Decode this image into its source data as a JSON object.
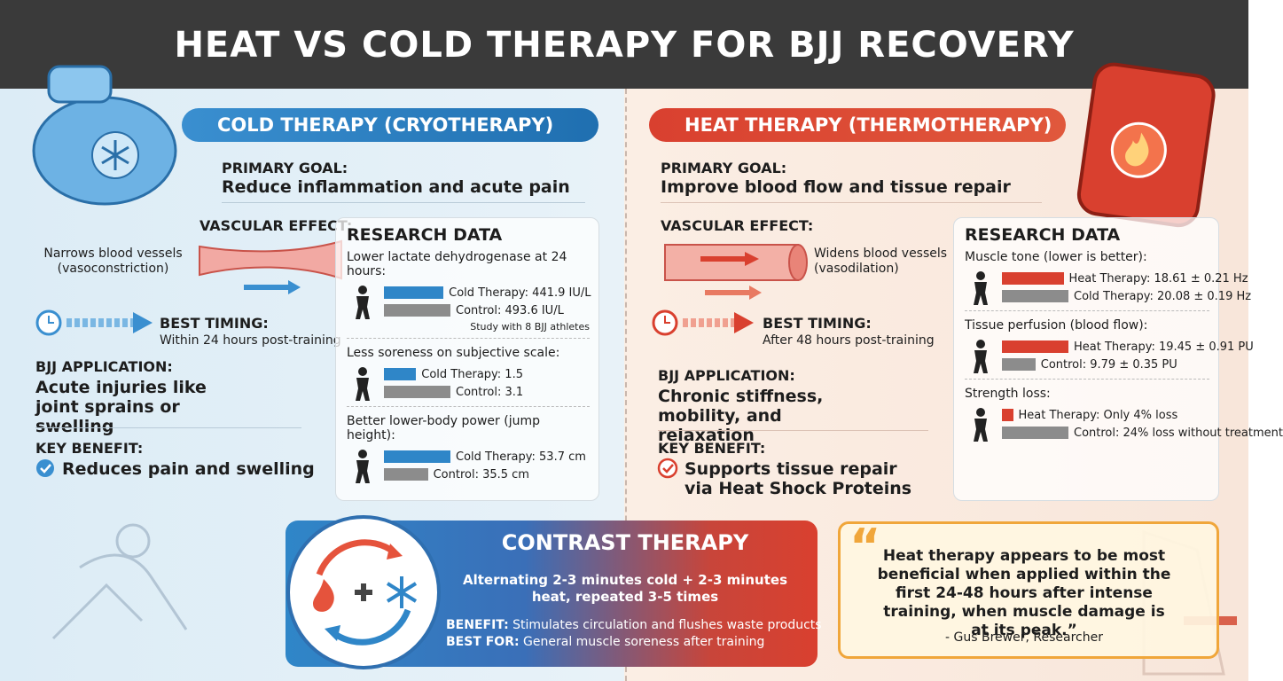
{
  "title": "HEAT VS COLD THERAPY FOR BJJ RECOVERY",
  "cold": {
    "heading": "COLD THERAPY (CRYOTHERAPY)",
    "goal_label": "PRIMARY GOAL:",
    "goal": "Reduce inflammation and acute pain",
    "vascular_label": "VASCULAR EFFECT:",
    "vascular": "Narrows blood vessels (vasoconstriction)",
    "timing_label": "BEST TIMING:",
    "timing": "Within 24 hours post-training",
    "application_label": "BJJ APPLICATION:",
    "application": "Acute injuries like joint sprains or swelling",
    "benefit_label": "KEY BENEFIT:",
    "benefit": "Reduces pain and swelling",
    "research": {
      "title": "RESEARCH DATA",
      "items": [
        {
          "title": "Lower lactate dehydrogenase at 24 hours:",
          "bars": [
            {
              "label": "Cold Therapy: 441.9 IU/L",
              "value": 441.9,
              "color": "#2f86c8"
            },
            {
              "label": "Control: 493.6 IU/L",
              "value": 493.6,
              "color": "#8c8c8c"
            }
          ],
          "note": "Study with 8 BJJ athletes"
        },
        {
          "title": "Less soreness on subjective scale:",
          "bars": [
            {
              "label": "Cold Therapy: 1.5",
              "value": 1.5,
              "color": "#2f86c8"
            },
            {
              "label": "Control: 3.1",
              "value": 3.1,
              "color": "#8c8c8c"
            }
          ]
        },
        {
          "title": "Better lower-body power (jump height):",
          "bars": [
            {
              "label": "Cold Therapy: 53.7 cm",
              "value": 53.7,
              "color": "#2f86c8"
            },
            {
              "label": "Control: 35.5 cm",
              "value": 35.5,
              "color": "#8c8c8c"
            }
          ]
        }
      ]
    }
  },
  "heat": {
    "heading": "HEAT THERAPY (THERMOTHERAPY)",
    "goal_label": "PRIMARY GOAL:",
    "goal": "Improve blood flow and tissue repair",
    "vascular_label": "VASCULAR EFFECT:",
    "vascular": "Widens blood vessels (vasodilation)",
    "timing_label": "BEST TIMING:",
    "timing": "After 48 hours post-training",
    "application_label": "BJJ APPLICATION:",
    "application": "Chronic stiffness, mobility, and relaxation",
    "benefit_label": "KEY BENEFIT:",
    "benefit": "Supports tissue repair via Heat Shock Proteins",
    "research": {
      "title": "RESEARCH DATA",
      "items": [
        {
          "title": "Muscle tone (lower is better):",
          "bars": [
            {
              "label": "Heat Therapy: 18.61 ± 0.21 Hz",
              "value": 18.61,
              "color": "#d9402f"
            },
            {
              "label": "Cold Therapy: 20.08 ± 0.19 Hz",
              "value": 20.08,
              "color": "#8c8c8c"
            }
          ]
        },
        {
          "title": "Tissue perfusion (blood flow):",
          "bars": [
            {
              "label": "Heat Therapy: 19.45 ± 0.91 PU",
              "value": 19.45,
              "color": "#d9402f"
            },
            {
              "label": "Control: 9.79 ± 0.35 PU",
              "value": 9.79,
              "color": "#8c8c8c"
            }
          ]
        },
        {
          "title": "Strength loss:",
          "bars": [
            {
              "label": "Heat Therapy: Only 4% loss",
              "value": 4,
              "color": "#d9402f"
            },
            {
              "label": "Control: 24% loss without treatment",
              "value": 24,
              "color": "#8c8c8c"
            }
          ]
        }
      ]
    }
  },
  "contrast": {
    "heading": "CONTRAST THERAPY",
    "protocol": "Alternating 2-3 minutes cold + 2-3 minutes heat, repeated 3-5 times",
    "benefit_label": "BENEFIT:",
    "benefit": "Stimulates circulation and flushes waste products",
    "best_for_label": "BEST FOR:",
    "best_for": "General muscle soreness after training"
  },
  "quote": {
    "open_mark": "“",
    "text": "Heat therapy appears to be most beneficial when applied within the first 24-48 hours after intense training, when muscle damage is at its peak.”",
    "attribution": "- Gus Brewer, Researcher"
  }
}
